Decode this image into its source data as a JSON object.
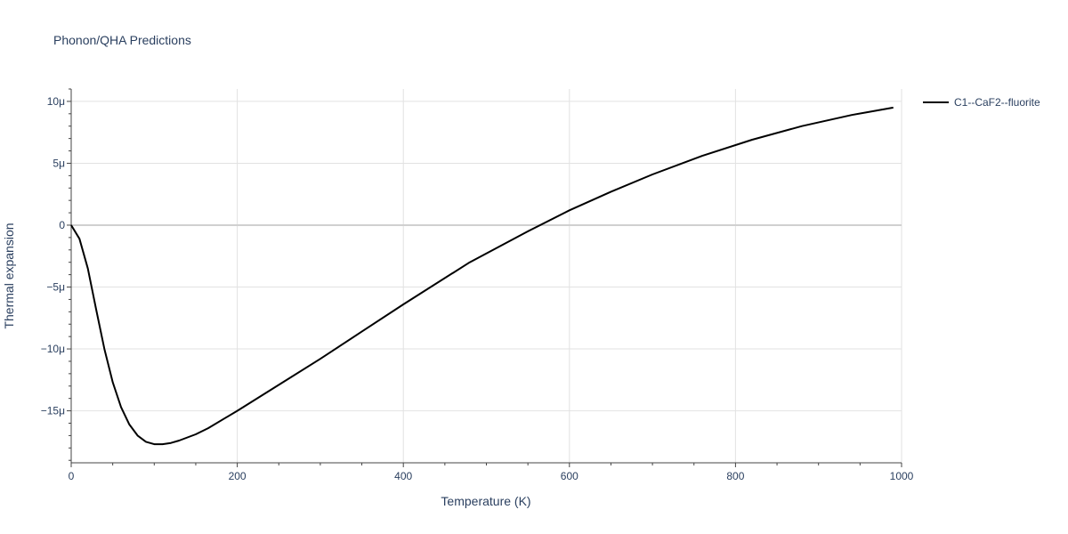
{
  "chart_data": {
    "type": "line",
    "title": "Phonon/QHA Predictions",
    "xlabel": "Temperature (K)",
    "ylabel": "Thermal expansion",
    "xlim": [
      0,
      1000
    ],
    "ylim": [
      -19.2,
      11
    ],
    "x_ticks": [
      0,
      200,
      400,
      600,
      800,
      1000
    ],
    "x_tick_labels": [
      "0",
      "200",
      "400",
      "600",
      "800",
      "1000"
    ],
    "y_ticks": [
      10,
      5,
      0,
      -5,
      -10,
      -15
    ],
    "y_tick_labels": [
      "10μ",
      "5μ",
      "0",
      "−5μ",
      "−10μ",
      "−15μ"
    ],
    "grid": true,
    "legend_position": "top-right",
    "series": [
      {
        "name": "C1--CaF2--fluorite",
        "color": "#000000",
        "x": [
          0,
          10,
          20,
          30,
          40,
          50,
          60,
          70,
          80,
          90,
          100,
          110,
          120,
          130,
          150,
          165,
          200,
          250,
          300,
          350,
          400,
          480,
          550,
          600,
          650,
          700,
          760,
          820,
          880,
          940,
          990
        ],
        "y": [
          0,
          -1.1,
          -3.5,
          -6.8,
          -10.0,
          -12.7,
          -14.7,
          -16.1,
          -17.0,
          -17.5,
          -17.7,
          -17.7,
          -17.6,
          -17.4,
          -16.9,
          -16.4,
          -15.0,
          -12.9,
          -10.8,
          -8.6,
          -6.4,
          -3.0,
          -0.5,
          1.2,
          2.7,
          4.1,
          5.6,
          6.9,
          8.0,
          8.9,
          9.5
        ]
      }
    ]
  }
}
